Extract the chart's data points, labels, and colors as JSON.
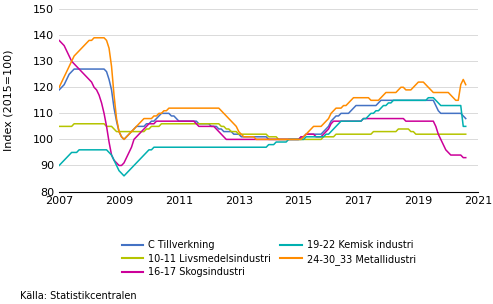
{
  "title": "",
  "ylabel": "Index (2015=100)",
  "xlabel": "",
  "ylim": [
    80,
    150
  ],
  "yticks": [
    80,
    90,
    100,
    110,
    120,
    130,
    140,
    150
  ],
  "xlim": [
    2007.0,
    2021.0
  ],
  "xticks": [
    2007,
    2009,
    2011,
    2013,
    2015,
    2017,
    2019,
    2021
  ],
  "source": "Källa: Statistikcentralen",
  "colors": {
    "C Tillverkning": "#4472C4",
    "10-11 Livsmedelsindustri": "#B5C400",
    "16-17 Skogsindustri": "#CC0099",
    "19-22 Kemisk industri": "#00B0B0",
    "24-30_33 Metallidustri": "#FF8C00"
  },
  "series": {
    "C Tillverkning": [
      119,
      120,
      121,
      123,
      125,
      126,
      127,
      127,
      127,
      127,
      127,
      127,
      127,
      127,
      127,
      127,
      127,
      127,
      127,
      126,
      123,
      119,
      112,
      107,
      103,
      101,
      100,
      101,
      102,
      103,
      104,
      105,
      105,
      105,
      105,
      106,
      106,
      107,
      107,
      108,
      109,
      110,
      110,
      110,
      110,
      109,
      109,
      108,
      107,
      107,
      107,
      107,
      107,
      107,
      107,
      107,
      106,
      106,
      106,
      106,
      106,
      105,
      105,
      105,
      104,
      104,
      103,
      103,
      103,
      103,
      102,
      102,
      102,
      101,
      101,
      101,
      101,
      101,
      101,
      101,
      101,
      101,
      101,
      101,
      100,
      100,
      100,
      100,
      100,
      100,
      100,
      100,
      100,
      100,
      100,
      100,
      100,
      101,
      101,
      102,
      102,
      102,
      102,
      102,
      102,
      102,
      103,
      104,
      105,
      107,
      108,
      109,
      109,
      110,
      110,
      110,
      110,
      111,
      112,
      113,
      113,
      113,
      113,
      113,
      113,
      113,
      113,
      113,
      114,
      115,
      115,
      115,
      115,
      115,
      115,
      115,
      115,
      115,
      115,
      115,
      115,
      115,
      115,
      115,
      115,
      115,
      115,
      115,
      115,
      115,
      115,
      113,
      111,
      110,
      110,
      110,
      110,
      110,
      110,
      110,
      110,
      110,
      109,
      108
    ],
    "10-11 Livsmedelsindustri": [
      105,
      105,
      105,
      105,
      105,
      105,
      106,
      106,
      106,
      106,
      106,
      106,
      106,
      106,
      106,
      106,
      106,
      106,
      106,
      105,
      105,
      105,
      104,
      103,
      103,
      103,
      103,
      103,
      103,
      103,
      103,
      103,
      103,
      103,
      103,
      104,
      104,
      105,
      105,
      105,
      105,
      106,
      106,
      106,
      106,
      106,
      106,
      106,
      106,
      106,
      106,
      106,
      106,
      106,
      106,
      106,
      106,
      106,
      106,
      106,
      106,
      106,
      106,
      106,
      106,
      105,
      105,
      104,
      104,
      103,
      103,
      103,
      102,
      102,
      102,
      102,
      102,
      102,
      102,
      102,
      102,
      102,
      102,
      102,
      101,
      101,
      101,
      101,
      100,
      100,
      100,
      100,
      100,
      100,
      100,
      100,
      100,
      100,
      100,
      100,
      100,
      100,
      100,
      100,
      100,
      100,
      101,
      101,
      101,
      101,
      101,
      102,
      102,
      102,
      102,
      102,
      102,
      102,
      102,
      102,
      102,
      102,
      102,
      102,
      102,
      102,
      103,
      103,
      103,
      103,
      103,
      103,
      103,
      103,
      103,
      103,
      104,
      104,
      104,
      104,
      104,
      103,
      103,
      102,
      102,
      102,
      102,
      102,
      102,
      102,
      102,
      102,
      102,
      102,
      102,
      102,
      102,
      102,
      102,
      102,
      102,
      102,
      102,
      102
    ],
    "16-17 Skogsindustri": [
      138,
      137,
      136,
      134,
      132,
      130,
      129,
      128,
      127,
      126,
      125,
      124,
      123,
      122,
      120,
      119,
      117,
      114,
      110,
      105,
      99,
      94,
      92,
      91,
      90,
      90,
      91,
      93,
      95,
      97,
      100,
      101,
      102,
      103,
      104,
      105,
      106,
      106,
      106,
      107,
      107,
      107,
      107,
      107,
      107,
      107,
      107,
      107,
      107,
      107,
      107,
      107,
      107,
      107,
      107,
      106,
      105,
      105,
      105,
      105,
      105,
      105,
      105,
      104,
      103,
      102,
      101,
      100,
      100,
      100,
      100,
      100,
      100,
      100,
      100,
      100,
      100,
      100,
      100,
      100,
      100,
      100,
      100,
      100,
      100,
      100,
      100,
      100,
      100,
      100,
      100,
      100,
      100,
      100,
      100,
      100,
      100,
      101,
      101,
      102,
      102,
      102,
      102,
      101,
      101,
      101,
      102,
      103,
      104,
      106,
      107,
      107,
      107,
      107,
      107,
      107,
      107,
      107,
      107,
      107,
      107,
      107,
      108,
      108,
      108,
      108,
      108,
      108,
      108,
      108,
      108,
      108,
      108,
      108,
      108,
      108,
      108,
      108,
      108,
      107,
      107,
      107,
      107,
      107,
      107,
      107,
      107,
      107,
      107,
      107,
      107,
      105,
      102,
      100,
      98,
      96,
      95,
      94,
      94,
      94,
      94,
      94,
      93,
      93
    ],
    "19-22 Kemisk industri": [
      90,
      91,
      92,
      93,
      94,
      95,
      95,
      95,
      96,
      96,
      96,
      96,
      96,
      96,
      96,
      96,
      96,
      96,
      96,
      96,
      95,
      94,
      92,
      90,
      88,
      87,
      86,
      87,
      88,
      89,
      90,
      91,
      92,
      93,
      94,
      95,
      96,
      96,
      97,
      97,
      97,
      97,
      97,
      97,
      97,
      97,
      97,
      97,
      97,
      97,
      97,
      97,
      97,
      97,
      97,
      97,
      97,
      97,
      97,
      97,
      97,
      97,
      97,
      97,
      97,
      97,
      97,
      97,
      97,
      97,
      97,
      97,
      97,
      97,
      97,
      97,
      97,
      97,
      97,
      97,
      97,
      97,
      97,
      97,
      98,
      98,
      98,
      99,
      99,
      99,
      99,
      99,
      100,
      100,
      100,
      100,
      100,
      100,
      100,
      101,
      101,
      101,
      101,
      101,
      101,
      101,
      101,
      102,
      102,
      103,
      104,
      105,
      106,
      107,
      107,
      107,
      107,
      107,
      107,
      107,
      107,
      107,
      108,
      108,
      109,
      110,
      110,
      111,
      111,
      112,
      113,
      113,
      114,
      114,
      115,
      115,
      115,
      115,
      115,
      115,
      115,
      115,
      115,
      115,
      115,
      115,
      115,
      115,
      116,
      116,
      116,
      115,
      114,
      113,
      113,
      113,
      113,
      113,
      113,
      113,
      113,
      113,
      105,
      105
    ],
    "24-30_33 Metallidustri": [
      120,
      122,
      124,
      126,
      128,
      130,
      132,
      133,
      134,
      135,
      136,
      137,
      138,
      138,
      139,
      139,
      139,
      139,
      139,
      138,
      135,
      128,
      117,
      108,
      103,
      101,
      100,
      101,
      102,
      103,
      104,
      105,
      106,
      107,
      108,
      108,
      108,
      108,
      109,
      109,
      110,
      110,
      111,
      111,
      112,
      112,
      112,
      112,
      112,
      112,
      112,
      112,
      112,
      112,
      112,
      112,
      112,
      112,
      112,
      112,
      112,
      112,
      112,
      112,
      112,
      111,
      110,
      109,
      108,
      107,
      106,
      105,
      103,
      102,
      101,
      101,
      101,
      101,
      101,
      100,
      100,
      100,
      100,
      100,
      100,
      100,
      100,
      100,
      100,
      100,
      100,
      100,
      100,
      100,
      100,
      100,
      100,
      100,
      101,
      102,
      103,
      104,
      105,
      105,
      105,
      105,
      106,
      107,
      108,
      110,
      111,
      112,
      112,
      112,
      113,
      113,
      114,
      115,
      116,
      116,
      116,
      116,
      116,
      116,
      116,
      115,
      115,
      115,
      115,
      116,
      117,
      118,
      118,
      118,
      118,
      118,
      119,
      120,
      120,
      119,
      119,
      119,
      120,
      121,
      122,
      122,
      122,
      121,
      120,
      119,
      118,
      118,
      118,
      118,
      118,
      118,
      118,
      117,
      116,
      115,
      115,
      121,
      123,
      121
    ]
  }
}
